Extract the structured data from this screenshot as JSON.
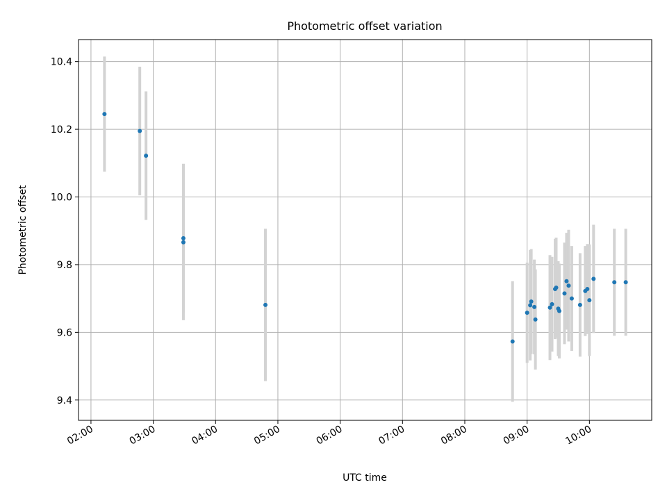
{
  "chart_data": {
    "type": "scatter",
    "title": "Photometric offset variation",
    "xlabel": "UTC time",
    "ylabel": "Photometric offset",
    "x_axis_kind": "time-of-day",
    "xlim": [
      "01:48",
      "11:00"
    ],
    "ylim": [
      9.34,
      10.465
    ],
    "x_ticks": [
      "02:00",
      "03:00",
      "04:00",
      "05:00",
      "06:00",
      "07:00",
      "08:00",
      "09:00",
      "10:00"
    ],
    "y_ticks": [
      "9.4",
      "9.6",
      "9.8",
      "10.0",
      "10.2",
      "10.4"
    ],
    "grid": true,
    "colors": {
      "points": "#1f77b4",
      "errorbars": "#d3d3d3",
      "grid": "#b0b0b0"
    },
    "series": [
      {
        "points": [
          {
            "x": "02:13",
            "y": 10.245,
            "err": 0.17
          },
          {
            "x": "02:47",
            "y": 10.195,
            "err": 0.19
          },
          {
            "x": "02:53",
            "y": 10.122,
            "err": 0.19
          },
          {
            "x": "03:29",
            "y": 9.866,
            "err": 0.23
          },
          {
            "x": "03:29",
            "y": 9.878,
            "err": 0.22
          },
          {
            "x": "04:48",
            "y": 9.681,
            "err": 0.225
          },
          {
            "x": "08:46",
            "y": 9.573,
            "err": 0.178
          },
          {
            "x": "09:00",
            "y": 9.658,
            "err": 0.148
          },
          {
            "x": "09:03",
            "y": 9.68,
            "err": 0.163
          },
          {
            "x": "09:04",
            "y": 9.691,
            "err": 0.155
          },
          {
            "x": "09:07",
            "y": 9.675,
            "err": 0.14
          },
          {
            "x": "09:08",
            "y": 9.638,
            "err": 0.148
          },
          {
            "x": "09:22",
            "y": 9.673,
            "err": 0.155
          },
          {
            "x": "09:24",
            "y": 9.683,
            "err": 0.14
          },
          {
            "x": "09:27",
            "y": 9.728,
            "err": 0.148
          },
          {
            "x": "09:28",
            "y": 9.732,
            "err": 0.148
          },
          {
            "x": "09:30",
            "y": 9.67,
            "err": 0.14
          },
          {
            "x": "09:31",
            "y": 9.663,
            "err": 0.14
          },
          {
            "x": "09:36",
            "y": 9.715,
            "err": 0.15
          },
          {
            "x": "09:38",
            "y": 9.751,
            "err": 0.143
          },
          {
            "x": "09:40",
            "y": 9.738,
            "err": 0.165
          },
          {
            "x": "09:43",
            "y": 9.7,
            "err": 0.155
          },
          {
            "x": "09:51",
            "y": 9.681,
            "err": 0.153
          },
          {
            "x": "09:56",
            "y": 9.722,
            "err": 0.133
          },
          {
            "x": "09:58",
            "y": 9.728,
            "err": 0.133
          },
          {
            "x": "10:00",
            "y": 9.695,
            "err": 0.165
          },
          {
            "x": "10:04",
            "y": 9.758,
            "err": 0.16
          },
          {
            "x": "10:24",
            "y": 9.748,
            "err": 0.158
          },
          {
            "x": "10:35",
            "y": 9.748,
            "err": 0.158
          }
        ]
      }
    ]
  }
}
